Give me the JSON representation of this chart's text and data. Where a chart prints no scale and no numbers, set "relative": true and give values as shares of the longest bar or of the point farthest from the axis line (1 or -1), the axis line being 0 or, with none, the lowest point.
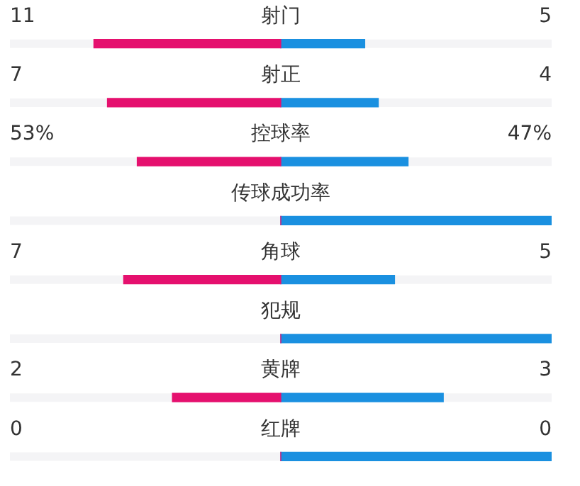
{
  "chart_data": {
    "type": "bar",
    "orientation": "horizontal",
    "stacked": true,
    "relative": true,
    "categories": [
      "射门",
      "射正",
      "控球率",
      "传球成功率",
      "角球",
      "犯规",
      "黄牌",
      "红牌"
    ],
    "series": [
      {
        "color": "#e5106e",
        "values": [
          -0.69,
          -0.64,
          -0.53,
          0,
          -0.58,
          0,
          -0.4,
          0
        ]
      },
      {
        "color": "#1a90e0",
        "values": [
          0.31,
          0.36,
          0.47,
          1,
          0.42,
          1,
          0.6,
          1
        ]
      }
    ],
    "annotations": [
      "11",
      "5",
      "7",
      "4",
      "53%",
      "47%",
      "7",
      "5",
      "2",
      "3",
      "0",
      "0"
    ]
  }
}
